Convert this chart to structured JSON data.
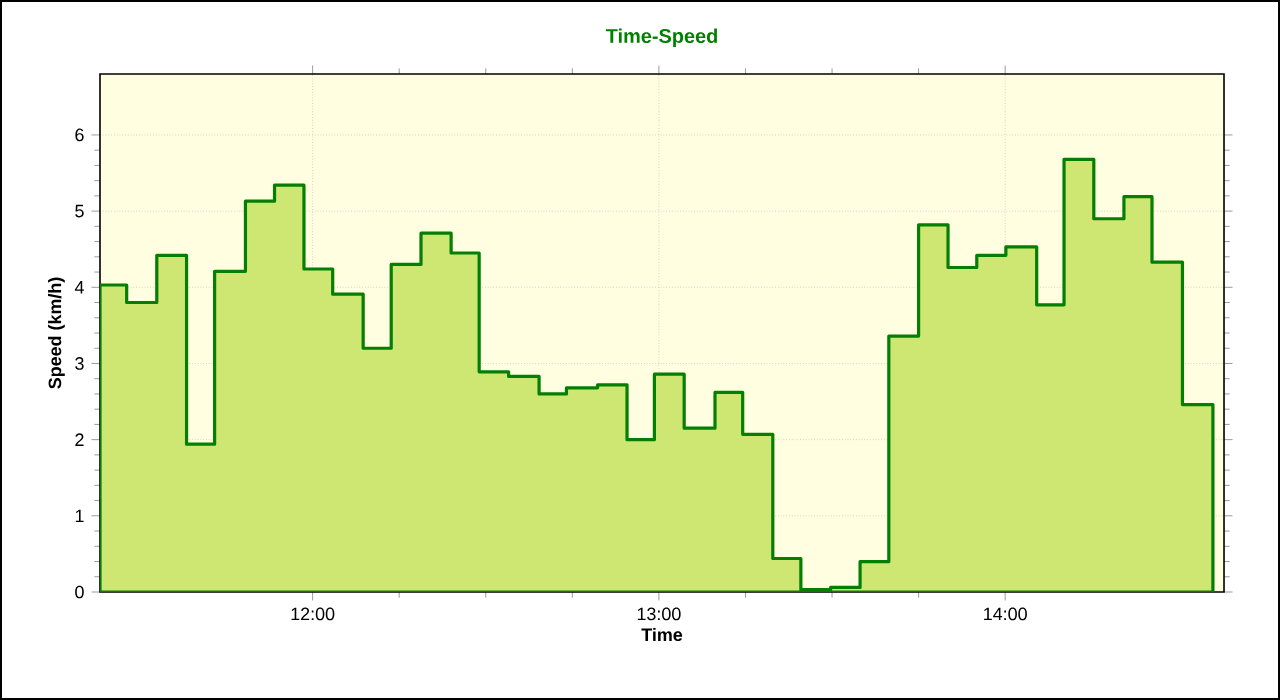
{
  "chart_data": {
    "type": "area",
    "title": "Time-Speed",
    "xlabel": "Time",
    "ylabel": "Speed (km/h)",
    "x": [
      11.386,
      11.463,
      11.55,
      11.636,
      11.717,
      11.806,
      11.89,
      11.975,
      12.058,
      12.146,
      12.227,
      12.313,
      12.4,
      12.481,
      12.566,
      12.654,
      12.733,
      12.823,
      12.908,
      12.987,
      13.073,
      13.162,
      13.242,
      13.329,
      13.41,
      13.496,
      13.581,
      13.664,
      13.75,
      13.835,
      13.918,
      14.002,
      14.091,
      14.17,
      14.256,
      14.343,
      14.424,
      14.512,
      14.6
    ],
    "series": [
      {
        "color": "#cee773",
        "values": [
          4.03,
          3.8,
          4.42,
          1.94,
          4.21,
          5.13,
          5.34,
          4.24,
          3.91,
          3.2,
          4.3,
          4.71,
          4.45,
          2.89,
          2.83,
          2.6,
          2.68,
          2.72,
          2.0,
          2.86,
          2.15,
          2.62,
          2.07,
          0.44,
          0.03,
          0.06,
          0.4,
          3.36,
          4.82,
          4.26,
          4.42,
          4.53,
          3.77,
          5.68,
          4.9,
          5.19,
          4.33,
          2.46,
          2.46
        ]
      }
    ],
    "xlim": [
      11.386,
      14.632
    ],
    "ylim": [
      0,
      6.8
    ],
    "xticks": [
      {
        "value": 12,
        "label": "12:00"
      },
      {
        "value": 13,
        "label": "13:00"
      },
      {
        "value": 14,
        "label": "14:00"
      }
    ],
    "yticks": [
      0,
      1,
      2,
      3,
      4,
      5,
      6
    ],
    "grid": true
  }
}
